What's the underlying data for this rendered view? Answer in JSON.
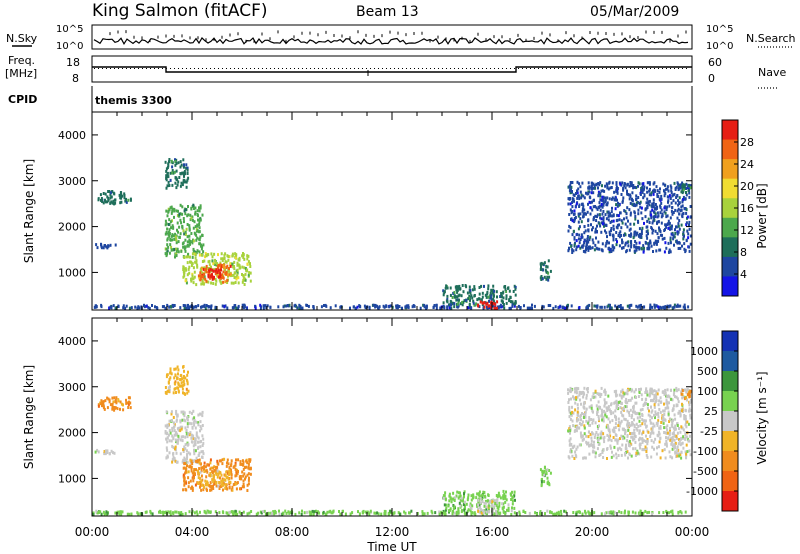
{
  "header": {
    "station": "King Salmon (fitACF)",
    "beam": "Beam 13",
    "date": "05/Mar/2009"
  },
  "noise_panel": {
    "left_label": "N.Sky",
    "right_label": "N.Search",
    "tick_top": "10^5",
    "tick_bottom": "10^0"
  },
  "freq_panel": {
    "left_label_1": "Freq.",
    "left_label_2": "[MHz]",
    "right_label": "Nave",
    "left_ticks": [
      "18",
      "8"
    ],
    "right_ticks": [
      "60",
      "0"
    ]
  },
  "cpid_panel": {
    "label": "CPID",
    "value": "themis 3300"
  },
  "x_axis": {
    "title": "Time UT",
    "ticks": [
      "00:00",
      "04:00",
      "08:00",
      "12:00",
      "16:00",
      "20:00",
      "00:00"
    ]
  },
  "colors": {
    "power_scale": [
      "#1414e6",
      "#1e46a0",
      "#1e6e5a",
      "#4ca84c",
      "#a8d23c",
      "#f0dc32",
      "#f0a01e",
      "#f06414",
      "#e61e14"
    ],
    "velocity_scale": [
      "#e61e14",
      "#f06414",
      "#f08c1e",
      "#f0b428",
      "#c8c8c8",
      "#78d250",
      "#3c963c",
      "#1e5aa0",
      "#1432b4"
    ]
  },
  "chart_data": [
    {
      "type": "heatmap",
      "title": "Power",
      "xlabel": "",
      "ylabel": "Slant Range [km]",
      "xlim": [
        0,
        24
      ],
      "ylim": [
        180,
        4500
      ],
      "y_ticks": [
        "1000",
        "2000",
        "3000",
        "4000"
      ],
      "colorbar": {
        "label": "Power [dB]",
        "range": [
          0,
          30
        ],
        "tick_labels": [
          "4",
          "8",
          "12",
          "16",
          "20",
          "24",
          "28"
        ]
      },
      "regions": [
        {
          "t0": 0.2,
          "t1": 1.6,
          "r0": 2450,
          "r1": 2800,
          "level": 2
        },
        {
          "t0": 0.1,
          "t1": 1.0,
          "r0": 1500,
          "r1": 1650,
          "level": 1
        },
        {
          "t0": 2.9,
          "t1": 3.9,
          "r0": 2800,
          "r1": 3500,
          "level": 2
        },
        {
          "t0": 2.9,
          "t1": 4.5,
          "r0": 1300,
          "r1": 2500,
          "level": 3
        },
        {
          "t0": 3.6,
          "t1": 6.4,
          "r0": 700,
          "r1": 1450,
          "level": 4
        },
        {
          "t0": 4.2,
          "t1": 5.6,
          "r0": 750,
          "r1": 1200,
          "level": 7
        },
        {
          "t0": 4.6,
          "t1": 5.2,
          "r0": 850,
          "r1": 1100,
          "level": 8
        },
        {
          "t0": 0.0,
          "t1": 24.0,
          "r0": 180,
          "r1": 320,
          "level": 1
        },
        {
          "t0": 14.0,
          "t1": 17.0,
          "r0": 250,
          "r1": 750,
          "level": 2
        },
        {
          "t0": 15.4,
          "t1": 16.3,
          "r0": 180,
          "r1": 400,
          "level": 8
        },
        {
          "t0": 17.9,
          "t1": 18.4,
          "r0": 800,
          "r1": 1300,
          "level": 2
        },
        {
          "t0": 19.0,
          "t1": 24.0,
          "r0": 1400,
          "r1": 3000,
          "level": 1
        },
        {
          "t0": 23.5,
          "t1": 24.0,
          "r0": 2700,
          "r1": 2950,
          "level": 2
        }
      ]
    },
    {
      "type": "heatmap",
      "title": "Velocity",
      "xlabel": "Time UT",
      "ylabel": "Slant Range [km]",
      "xlim": [
        0,
        24
      ],
      "ylim": [
        180,
        4500
      ],
      "y_ticks": [
        "1000",
        "2000",
        "3000",
        "4000"
      ],
      "colorbar": {
        "label": "Velocity [m s⁻¹]",
        "range": [
          -1200,
          1200
        ],
        "tick_labels": [
          "1000",
          "500",
          "100",
          "25",
          "-25",
          "-100",
          "-500",
          "-1000"
        ]
      },
      "regions": [
        {
          "t0": 0.2,
          "t1": 1.6,
          "r0": 2450,
          "r1": 2800,
          "level": 2
        },
        {
          "t0": 0.1,
          "t1": 1.0,
          "r0": 1500,
          "r1": 1650,
          "level": 4
        },
        {
          "t0": 2.9,
          "t1": 3.9,
          "r0": 2800,
          "r1": 3500,
          "level": 3
        },
        {
          "t0": 2.9,
          "t1": 4.5,
          "r0": 1300,
          "r1": 2500,
          "level": 4
        },
        {
          "t0": 3.6,
          "t1": 6.4,
          "r0": 700,
          "r1": 1450,
          "level": 2
        },
        {
          "t0": 4.2,
          "t1": 5.6,
          "r0": 750,
          "r1": 1200,
          "level": 3
        },
        {
          "t0": 0.0,
          "t1": 24.0,
          "r0": 180,
          "r1": 320,
          "level": 5
        },
        {
          "t0": 14.0,
          "t1": 17.0,
          "r0": 250,
          "r1": 750,
          "level": 5
        },
        {
          "t0": 15.4,
          "t1": 16.3,
          "r0": 180,
          "r1": 600,
          "level": 4
        },
        {
          "t0": 17.9,
          "t1": 18.4,
          "r0": 800,
          "r1": 1300,
          "level": 5
        },
        {
          "t0": 19.0,
          "t1": 24.0,
          "r0": 1400,
          "r1": 3000,
          "level": 4
        },
        {
          "t0": 23.5,
          "t1": 24.0,
          "r0": 2700,
          "r1": 2950,
          "level": 2
        }
      ]
    }
  ]
}
